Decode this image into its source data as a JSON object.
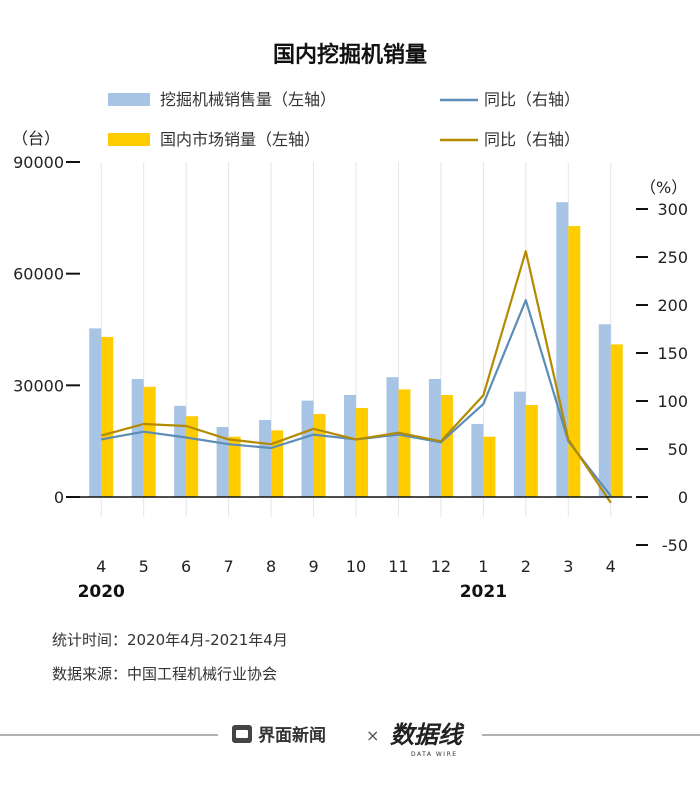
{
  "chart_data": {
    "type": "bar+line",
    "title": "国内挖掘机销量",
    "categories": [
      "4",
      "5",
      "6",
      "7",
      "8",
      "9",
      "10",
      "11",
      "12",
      "1",
      "2",
      "3",
      "4"
    ],
    "year_labels": [
      {
        "label": "2020",
        "category_index": 0
      },
      {
        "label": "2021",
        "category_index": 9
      }
    ],
    "left_axis": {
      "unit": "（台）",
      "ylim": [
        0,
        90000
      ],
      "ticks": [
        0,
        30000,
        60000,
        90000
      ]
    },
    "right_axis": {
      "unit": "（%）",
      "ylim": [
        -50,
        300
      ],
      "ticks": [
        -50,
        0,
        50,
        100,
        150,
        200,
        250,
        300
      ]
    },
    "series": [
      {
        "name": "挖掘机械销售量（左轴）",
        "type": "bar",
        "axis": "left",
        "color": "#a7c4e5",
        "values": [
          45300,
          31700,
          24500,
          18800,
          20700,
          25900,
          27400,
          32200,
          31700,
          19600,
          28300,
          79200,
          46400
        ]
      },
      {
        "name": "国内市场销量（左轴）",
        "type": "bar",
        "axis": "left",
        "color": "#ffcc00",
        "values": [
          43000,
          29600,
          21700,
          16200,
          17900,
          22300,
          23900,
          28900,
          27400,
          16200,
          24700,
          72800,
          41000
        ]
      },
      {
        "name": "同比（右轴）",
        "type": "line",
        "axis": "right",
        "color": "#5b8db8",
        "values": [
          60,
          68,
          62,
          55,
          51,
          65,
          60,
          65,
          57,
          97,
          205,
          58,
          1
        ]
      },
      {
        "name": "同比（右轴）",
        "type": "line",
        "axis": "right",
        "color": "#b38a00",
        "values": [
          64,
          76,
          74,
          60,
          55,
          71,
          60,
          67,
          58,
          106,
          256,
          60,
          -6
        ]
      }
    ]
  },
  "footer": {
    "period": "统计时间：2020年4月-2021年4月",
    "source": "数据来源：中国工程机械行业协会"
  },
  "branding": {
    "jiemian": "界面新闻",
    "times": "×",
    "datawire": "数据线",
    "datawire_sub": "DATA WIRE"
  }
}
